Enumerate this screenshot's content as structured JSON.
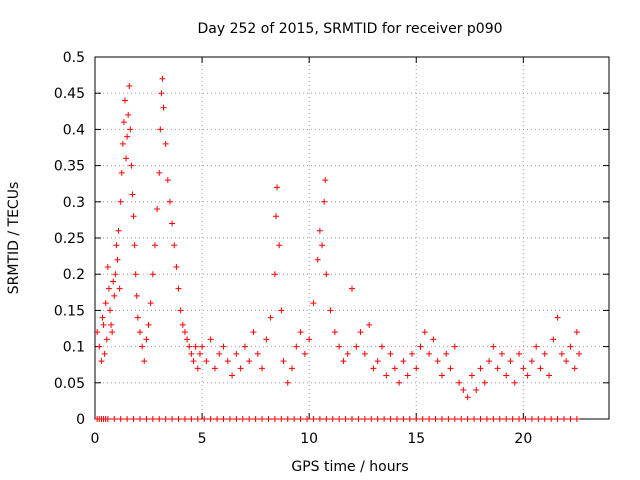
{
  "chart_data": {
    "type": "scatter",
    "title": "Day 252 of 2015, SRMTID for receiver p090",
    "xlabel": "GPS time / hours",
    "ylabel": "SRMTID / TECUs",
    "xlim": [
      0,
      24
    ],
    "ylim": [
      0,
      0.5
    ],
    "x_ticks": [
      0,
      5,
      10,
      15,
      20
    ],
    "x_tick_labels": [
      "0",
      "5",
      "10",
      "15",
      "20"
    ],
    "y_ticks": [
      0,
      0.05,
      0.1,
      0.15,
      0.2,
      0.25,
      0.3,
      0.35,
      0.4,
      0.45,
      0.5
    ],
    "y_tick_labels": [
      "0",
      "0.05",
      "0.1",
      "0.15",
      "0.2",
      "0.25",
      "0.3",
      "0.35",
      "0.4",
      "0.45",
      "0.5"
    ],
    "grid": true,
    "marker": "+",
    "color": "#ff0000",
    "series": [
      {
        "name": "SRMTID",
        "points": [
          [
            0.1,
            0.12
          ],
          [
            0.2,
            0.1
          ],
          [
            0.3,
            0.08
          ],
          [
            0.35,
            0.14
          ],
          [
            0.4,
            0.13
          ],
          [
            0.45,
            0.09
          ],
          [
            0.5,
            0.16
          ],
          [
            0.55,
            0.11
          ],
          [
            0.6,
            0.21
          ],
          [
            0.65,
            0.18
          ],
          [
            0.7,
            0.15
          ],
          [
            0.75,
            0.13
          ],
          [
            0.8,
            0.12
          ],
          [
            0.85,
            0.19
          ],
          [
            0.9,
            0.17
          ],
          [
            0.95,
            0.2
          ],
          [
            1.0,
            0.24
          ],
          [
            1.05,
            0.22
          ],
          [
            1.1,
            0.26
          ],
          [
            1.15,
            0.18
          ],
          [
            1.2,
            0.3
          ],
          [
            1.25,
            0.34
          ],
          [
            1.3,
            0.38
          ],
          [
            1.35,
            0.41
          ],
          [
            1.4,
            0.44
          ],
          [
            1.45,
            0.36
          ],
          [
            1.5,
            0.39
          ],
          [
            1.55,
            0.42
          ],
          [
            1.6,
            0.46
          ],
          [
            1.65,
            0.4
          ],
          [
            1.7,
            0.35
          ],
          [
            1.75,
            0.31
          ],
          [
            1.8,
            0.28
          ],
          [
            1.85,
            0.24
          ],
          [
            1.9,
            0.2
          ],
          [
            1.95,
            0.17
          ],
          [
            2.0,
            0.14
          ],
          [
            2.1,
            0.12
          ],
          [
            2.2,
            0.1
          ],
          [
            2.3,
            0.08
          ],
          [
            2.4,
            0.11
          ],
          [
            2.5,
            0.13
          ],
          [
            2.6,
            0.16
          ],
          [
            2.7,
            0.2
          ],
          [
            2.8,
            0.24
          ],
          [
            2.9,
            0.29
          ],
          [
            3.0,
            0.34
          ],
          [
            3.05,
            0.4
          ],
          [
            3.1,
            0.45
          ],
          [
            3.15,
            0.47
          ],
          [
            3.2,
            0.43
          ],
          [
            3.3,
            0.38
          ],
          [
            3.4,
            0.33
          ],
          [
            3.5,
            0.3
          ],
          [
            3.6,
            0.27
          ],
          [
            3.7,
            0.24
          ],
          [
            3.8,
            0.21
          ],
          [
            3.9,
            0.18
          ],
          [
            4.0,
            0.15
          ],
          [
            4.1,
            0.13
          ],
          [
            4.2,
            0.12
          ],
          [
            4.3,
            0.11
          ],
          [
            4.4,
            0.1
          ],
          [
            4.5,
            0.09
          ],
          [
            4.6,
            0.08
          ],
          [
            4.7,
            0.1
          ],
          [
            4.8,
            0.07
          ],
          [
            4.9,
            0.09
          ],
          [
            5.0,
            0.1
          ],
          [
            5.2,
            0.08
          ],
          [
            5.4,
            0.11
          ],
          [
            5.6,
            0.07
          ],
          [
            5.8,
            0.09
          ],
          [
            6.0,
            0.1
          ],
          [
            6.2,
            0.08
          ],
          [
            6.4,
            0.06
          ],
          [
            6.6,
            0.09
          ],
          [
            6.8,
            0.07
          ],
          [
            7.0,
            0.1
          ],
          [
            7.2,
            0.08
          ],
          [
            7.4,
            0.12
          ],
          [
            7.6,
            0.09
          ],
          [
            7.8,
            0.07
          ],
          [
            8.0,
            0.11
          ],
          [
            8.2,
            0.14
          ],
          [
            8.4,
            0.2
          ],
          [
            8.45,
            0.28
          ],
          [
            8.5,
            0.32
          ],
          [
            8.6,
            0.24
          ],
          [
            8.7,
            0.15
          ],
          [
            8.8,
            0.08
          ],
          [
            9.0,
            0.05
          ],
          [
            9.2,
            0.07
          ],
          [
            9.4,
            0.1
          ],
          [
            9.6,
            0.12
          ],
          [
            9.8,
            0.09
          ],
          [
            10.0,
            0.11
          ],
          [
            10.2,
            0.16
          ],
          [
            10.4,
            0.22
          ],
          [
            10.5,
            0.26
          ],
          [
            10.6,
            0.24
          ],
          [
            10.7,
            0.3
          ],
          [
            10.75,
            0.33
          ],
          [
            10.8,
            0.2
          ],
          [
            11.0,
            0.15
          ],
          [
            11.2,
            0.12
          ],
          [
            11.4,
            0.1
          ],
          [
            11.6,
            0.08
          ],
          [
            11.8,
            0.09
          ],
          [
            12.0,
            0.18
          ],
          [
            12.2,
            0.1
          ],
          [
            12.4,
            0.12
          ],
          [
            12.6,
            0.09
          ],
          [
            12.8,
            0.13
          ],
          [
            13.0,
            0.07
          ],
          [
            13.2,
            0.08
          ],
          [
            13.4,
            0.1
          ],
          [
            13.6,
            0.06
          ],
          [
            13.8,
            0.09
          ],
          [
            14.0,
            0.07
          ],
          [
            14.2,
            0.05
          ],
          [
            14.4,
            0.08
          ],
          [
            14.6,
            0.06
          ],
          [
            14.8,
            0.09
          ],
          [
            15.0,
            0.07
          ],
          [
            15.2,
            0.1
          ],
          [
            15.4,
            0.12
          ],
          [
            15.6,
            0.09
          ],
          [
            15.8,
            0.11
          ],
          [
            16.0,
            0.08
          ],
          [
            16.2,
            0.06
          ],
          [
            16.4,
            0.09
          ],
          [
            16.6,
            0.07
          ],
          [
            16.8,
            0.1
          ],
          [
            17.0,
            0.05
          ],
          [
            17.2,
            0.04
          ],
          [
            17.4,
            0.03
          ],
          [
            17.6,
            0.06
          ],
          [
            17.8,
            0.04
          ],
          [
            18.0,
            0.07
          ],
          [
            18.2,
            0.05
          ],
          [
            18.4,
            0.08
          ],
          [
            18.6,
            0.1
          ],
          [
            18.8,
            0.07
          ],
          [
            19.0,
            0.09
          ],
          [
            19.2,
            0.06
          ],
          [
            19.4,
            0.08
          ],
          [
            19.6,
            0.05
          ],
          [
            19.8,
            0.09
          ],
          [
            20.0,
            0.07
          ],
          [
            20.2,
            0.06
          ],
          [
            20.4,
            0.08
          ],
          [
            20.6,
            0.1
          ],
          [
            20.8,
            0.07
          ],
          [
            21.0,
            0.09
          ],
          [
            21.2,
            0.06
          ],
          [
            21.4,
            0.11
          ],
          [
            21.6,
            0.14
          ],
          [
            21.8,
            0.09
          ],
          [
            22.0,
            0.08
          ],
          [
            22.2,
            0.1
          ],
          [
            22.4,
            0.07
          ],
          [
            22.5,
            0.12
          ],
          [
            22.6,
            0.09
          ]
        ]
      }
    ],
    "zero_band_points": [
      0.1,
      0.2,
      0.3,
      0.4,
      0.5,
      0.6,
      0.9,
      1.2,
      1.5,
      1.8,
      2.1,
      2.4,
      2.7,
      3.0,
      3.3,
      3.6,
      3.9,
      4.2,
      4.5,
      4.8,
      5.1,
      5.4,
      5.7,
      6.0,
      6.3,
      6.6,
      6.9,
      7.2,
      7.5,
      7.8,
      8.1,
      8.4,
      8.7,
      9.0,
      9.3,
      9.6,
      9.9,
      10.2,
      10.5,
      10.8,
      11.1,
      11.4,
      11.7,
      12.0,
      12.3,
      12.6,
      12.9,
      13.2,
      13.5,
      13.8,
      14.1,
      14.4,
      14.7,
      15.0,
      15.3,
      15.6,
      15.9,
      16.2,
      16.5,
      16.8,
      17.1,
      17.4,
      17.7,
      18.0,
      18.3,
      18.6,
      18.9,
      19.2,
      19.5,
      19.8,
      20.1,
      20.4,
      20.7,
      21.0,
      21.3,
      21.6,
      21.9,
      22.2,
      22.5
    ]
  }
}
